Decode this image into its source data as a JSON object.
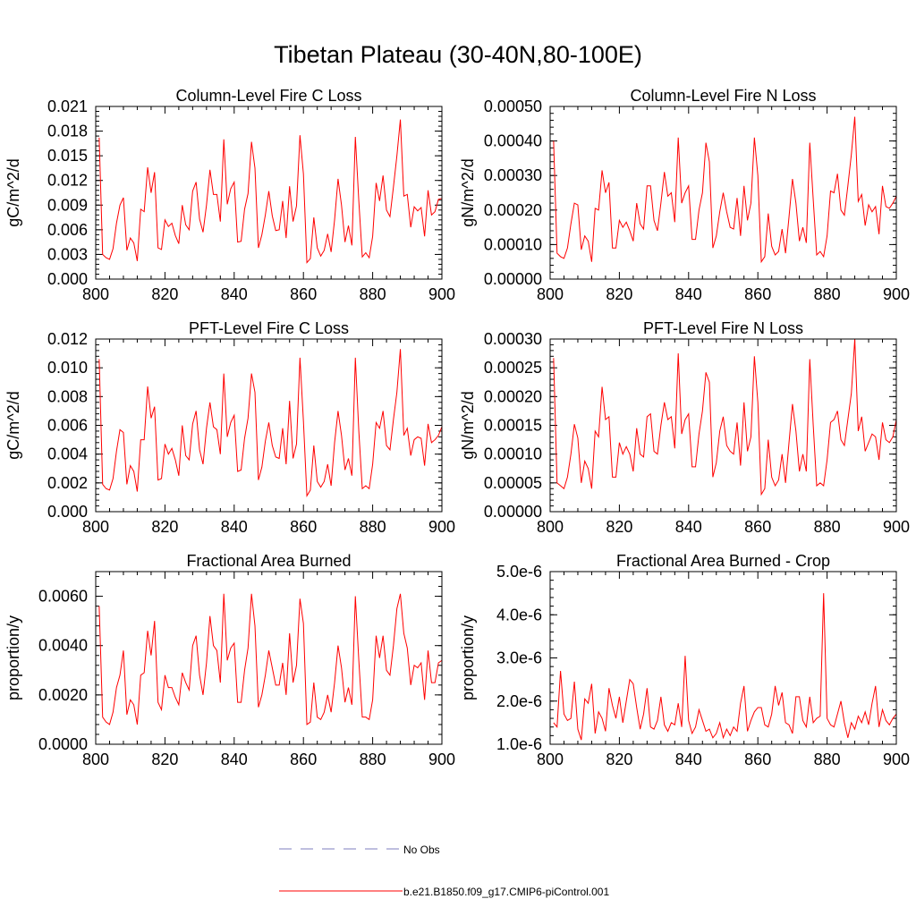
{
  "title": "Tibetan Plateau (30-40N,80-100E)",
  "colors": {
    "series": "#ff0000",
    "obs": "#7f7fbf",
    "axis": "#000000"
  },
  "legend": [
    {
      "label": "No Obs",
      "style": "dashed",
      "color": "#7f7fbf"
    },
    {
      "label": "b.e21.B1850.f09_g17.CMIP6-piControl.001",
      "style": "solid",
      "color": "#ff0000"
    }
  ],
  "chart_data": [
    {
      "type": "line",
      "title": "Column-Level Fire C Loss",
      "xlabel": "",
      "ylabel": "gC/m^2/d",
      "xlim": [
        800,
        900
      ],
      "ylim": [
        0,
        0.021
      ],
      "xticks": [
        800,
        820,
        840,
        860,
        880,
        900
      ],
      "yticks": [
        0.0,
        0.003,
        0.006,
        0.009,
        0.012,
        0.015,
        0.018,
        0.021
      ],
      "ytick_labels": [
        "0.000",
        "0.003",
        "0.006",
        "0.009",
        "0.012",
        "0.015",
        "0.018",
        "0.021"
      ],
      "x_start": 801,
      "series": [
        {
          "name": "b.e21.B1850.f09_g17.CMIP6-piControl.001",
          "values": [
            0.0172,
            0.003,
            0.0026,
            0.0024,
            0.0037,
            0.0068,
            0.009,
            0.0099,
            0.0035,
            0.005,
            0.0044,
            0.0022,
            0.0085,
            0.0082,
            0.0136,
            0.0105,
            0.013,
            0.0038,
            0.0036,
            0.0072,
            0.0064,
            0.0068,
            0.0053,
            0.0043,
            0.009,
            0.0066,
            0.006,
            0.0107,
            0.0118,
            0.0073,
            0.0057,
            0.009,
            0.0133,
            0.0103,
            0.0103,
            0.007,
            0.017,
            0.0091,
            0.011,
            0.0118,
            0.0045,
            0.0046,
            0.0085,
            0.0104,
            0.0167,
            0.0135,
            0.0038,
            0.0054,
            0.0078,
            0.0107,
            0.0077,
            0.0059,
            0.006,
            0.0095,
            0.005,
            0.0113,
            0.007,
            0.0089,
            0.0175,
            0.0128,
            0.002,
            0.0025,
            0.0075,
            0.0038,
            0.0028,
            0.0035,
            0.0055,
            0.0033,
            0.0072,
            0.0122,
            0.009,
            0.0045,
            0.0065,
            0.0041,
            0.0173,
            0.0095,
            0.0027,
            0.0032,
            0.0026,
            0.0052,
            0.0117,
            0.0095,
            0.0126,
            0.0084,
            0.0076,
            0.0112,
            0.015,
            0.0194,
            0.0101,
            0.0103,
            0.0063,
            0.0088,
            0.0083,
            0.0087,
            0.0052,
            0.0108,
            0.0078,
            0.0082,
            0.0097,
            0.0098
          ]
        }
      ]
    },
    {
      "type": "line",
      "title": "Column-Level Fire N Loss",
      "xlabel": "",
      "ylabel": "gN/m^2/d",
      "xlim": [
        800,
        900
      ],
      "ylim": [
        0,
        0.0005
      ],
      "xticks": [
        800,
        820,
        840,
        860,
        880,
        900
      ],
      "yticks": [
        0,
        0.0001,
        0.0002,
        0.0003,
        0.0004,
        0.0005
      ],
      "ytick_labels": [
        "0.00000",
        "0.00010",
        "0.00020",
        "0.00030",
        "0.00040",
        "0.00050"
      ],
      "x_start": 801,
      "series": [
        {
          "name": "b.e21.B1850.f09_g17.CMIP6-piControl.001",
          "values": [
            0.0004,
            7.5e-05,
            6.5e-05,
            6e-05,
            9e-05,
            0.00016,
            0.00022,
            0.000215,
            8.5e-05,
            0.000125,
            0.00011,
            5e-05,
            0.000205,
            0.0002,
            0.000315,
            0.00025,
            0.00028,
            9e-05,
            9e-05,
            0.00017,
            0.00015,
            0.000165,
            0.00014,
            0.00011,
            0.00022,
            0.00016,
            0.000145,
            0.00027,
            0.00027,
            0.00017,
            0.00014,
            0.00022,
            0.00031,
            0.00024,
            0.00025,
            0.000165,
            0.00041,
            0.00022,
            0.00025,
            0.00027,
            0.000115,
            0.000115,
            0.0002,
            0.00025,
            0.000395,
            0.00034,
            9e-05,
            0.000125,
            0.000195,
            0.00025,
            0.000195,
            0.00015,
            0.000145,
            0.000235,
            0.000125,
            0.00027,
            0.00017,
            0.00022,
            0.00041,
            0.0003,
            5e-05,
            6.5e-05,
            0.00019,
            9.5e-05,
            7e-05,
            8e-05,
            0.000145,
            7.5e-05,
            0.00018,
            0.00029,
            0.00022,
            0.00011,
            0.00015,
            0.000105,
            0.000395,
            0.00023,
            7e-05,
            8e-05,
            6.5e-05,
            0.000125,
            0.000255,
            0.00025,
            0.000305,
            0.0002,
            0.000185,
            0.00027,
            0.00036,
            0.00047,
            0.000225,
            0.000245,
            0.000155,
            0.000215,
            0.000195,
            0.00021,
            0.00013,
            0.00027,
            0.00021,
            0.000205,
            0.00022,
            0.00024
          ]
        }
      ]
    },
    {
      "type": "line",
      "title": "PFT-Level Fire C Loss",
      "xlabel": "",
      "ylabel": "gC/m^2/d",
      "xlim": [
        800,
        900
      ],
      "ylim": [
        0,
        0.012
      ],
      "xticks": [
        800,
        820,
        840,
        860,
        880,
        900
      ],
      "yticks": [
        0.0,
        0.002,
        0.004,
        0.006,
        0.008,
        0.01,
        0.012
      ],
      "ytick_labels": [
        "0.000",
        "0.002",
        "0.004",
        "0.006",
        "0.008",
        "0.010",
        "0.012"
      ],
      "x_start": 801,
      "series": [
        {
          "name": "b.e21.B1850.f09_g17.CMIP6-piControl.001",
          "values": [
            0.0106,
            0.0019,
            0.0016,
            0.0015,
            0.0023,
            0.0042,
            0.0057,
            0.0055,
            0.0019,
            0.0032,
            0.0028,
            0.0014,
            0.005,
            0.005,
            0.0087,
            0.0065,
            0.0073,
            0.0022,
            0.0023,
            0.0047,
            0.004,
            0.0044,
            0.0036,
            0.0025,
            0.006,
            0.0039,
            0.0036,
            0.0061,
            0.007,
            0.0043,
            0.0033,
            0.0058,
            0.0076,
            0.0059,
            0.0057,
            0.004,
            0.0096,
            0.0052,
            0.0062,
            0.0067,
            0.0028,
            0.0029,
            0.0051,
            0.0065,
            0.0096,
            0.0083,
            0.0022,
            0.0031,
            0.0049,
            0.0062,
            0.0046,
            0.0038,
            0.0037,
            0.0058,
            0.0033,
            0.0077,
            0.0037,
            0.0047,
            0.0107,
            0.0063,
            0.0011,
            0.0015,
            0.0046,
            0.0021,
            0.0017,
            0.0021,
            0.0033,
            0.0018,
            0.0048,
            0.007,
            0.0053,
            0.0029,
            0.0037,
            0.0025,
            0.0107,
            0.0056,
            0.0016,
            0.0018,
            0.0016,
            0.0033,
            0.0062,
            0.0058,
            0.007,
            0.0046,
            0.0043,
            0.0064,
            0.0083,
            0.0113,
            0.0053,
            0.0058,
            0.0039,
            0.005,
            0.0052,
            0.0051,
            0.0032,
            0.0061,
            0.0048,
            0.005,
            0.0053,
            0.0059
          ]
        }
      ]
    },
    {
      "type": "line",
      "title": "PFT-Level Fire N Loss",
      "xlabel": "",
      "ylabel": "gN/m^2/d",
      "xlim": [
        800,
        900
      ],
      "ylim": [
        0,
        0.0003
      ],
      "xticks": [
        800,
        820,
        840,
        860,
        880,
        900
      ],
      "yticks": [
        0,
        5e-05,
        0.0001,
        0.00015,
        0.0002,
        0.00025,
        0.0003
      ],
      "ytick_labels": [
        "0.00000",
        "0.00005",
        "0.00010",
        "0.00015",
        "0.00020",
        "0.00025",
        "0.00030"
      ],
      "x_start": 801,
      "series": [
        {
          "name": "b.e21.B1850.f09_g17.CMIP6-piControl.001",
          "values": [
            0.000267,
            5e-05,
            4.5e-05,
            4e-05,
            6e-05,
            0.0001,
            0.000152,
            0.000128,
            5e-05,
            8.8e-05,
            7.5e-05,
            4e-05,
            0.00014,
            0.00013,
            0.000217,
            0.00016,
            0.000165,
            6e-05,
            6e-05,
            0.00012,
            0.0001,
            0.000113,
            0.0001,
            7e-05,
            0.000145,
            0.0001,
            9.5e-05,
            0.000165,
            0.00017,
            0.000105,
            0.0001,
            0.00015,
            0.00019,
            0.00016,
            0.000165,
            0.00011,
            0.000275,
            0.000135,
            0.00016,
            0.00017,
            7.8e-05,
            7.8e-05,
            0.000135,
            0.000175,
            0.000242,
            0.000225,
            6e-05,
            8.5e-05,
            0.00014,
            0.000165,
            0.000115,
            0.000105,
            0.0001,
            0.000155,
            8e-05,
            0.00019,
            0.000105,
            0.00013,
            0.00027,
            0.00019,
            3e-05,
            4e-05,
            0.000125,
            6e-05,
            4.5e-05,
            5.5e-05,
            0.0001,
            5e-05,
            0.00012,
            0.000187,
            0.00014,
            7e-05,
            0.0001,
            7e-05,
            0.000265,
            0.00015,
            4.5e-05,
            5e-05,
            4.5e-05,
            9e-05,
            0.000155,
            0.00016,
            0.000175,
            0.000125,
            0.000115,
            0.00016,
            0.000205,
            0.0003,
            0.00014,
            0.000165,
            0.000105,
            0.00012,
            0.000135,
            0.00013,
            9e-05,
            0.000155,
            0.000125,
            0.00012,
            0.00013,
            0.00016
          ]
        }
      ]
    },
    {
      "type": "line",
      "title": "Fractional Area Burned",
      "xlabel": "",
      "ylabel": "proportion/y",
      "xlim": [
        800,
        900
      ],
      "ylim": [
        0,
        0.007
      ],
      "xticks": [
        800,
        820,
        840,
        860,
        880,
        900
      ],
      "yticks": [
        0.0,
        0.002,
        0.004,
        0.006
      ],
      "ytick_labels": [
        "0.0000",
        "0.0020",
        "0.0040",
        "0.0060"
      ],
      "x_start": 801,
      "series": [
        {
          "name": "b.e21.B1850.f09_g17.CMIP6-piControl.001",
          "values": [
            0.0056,
            0.0011,
            0.0009,
            0.0008,
            0.0013,
            0.0023,
            0.0028,
            0.0038,
            0.0012,
            0.0018,
            0.0016,
            0.0008,
            0.0028,
            0.0029,
            0.0046,
            0.0036,
            0.005,
            0.0017,
            0.0014,
            0.0028,
            0.0023,
            0.0023,
            0.0019,
            0.0016,
            0.0029,
            0.0025,
            0.0022,
            0.004,
            0.0044,
            0.0028,
            0.002,
            0.0033,
            0.0052,
            0.004,
            0.0038,
            0.0025,
            0.0061,
            0.0034,
            0.0039,
            0.0041,
            0.0017,
            0.0017,
            0.003,
            0.0039,
            0.0061,
            0.0048,
            0.0015,
            0.002,
            0.0028,
            0.0038,
            0.0031,
            0.0024,
            0.0024,
            0.0033,
            0.002,
            0.0045,
            0.0025,
            0.0032,
            0.0059,
            0.0049,
            0.0008,
            0.0009,
            0.0025,
            0.0011,
            0.001,
            0.0013,
            0.002,
            0.0013,
            0.0025,
            0.004,
            0.0031,
            0.0017,
            0.0023,
            0.0016,
            0.006,
            0.0034,
            0.0011,
            0.0011,
            0.001,
            0.0018,
            0.0044,
            0.0035,
            0.0044,
            0.003,
            0.0028,
            0.004,
            0.0055,
            0.0061,
            0.0045,
            0.0039,
            0.0024,
            0.0032,
            0.0031,
            0.0033,
            0.0018,
            0.0038,
            0.0025,
            0.0025,
            0.0033,
            0.0034
          ]
        }
      ]
    },
    {
      "type": "line",
      "title": "Fractional Area Burned - Crop",
      "xlabel": "",
      "ylabel": "proportion/y",
      "xlim": [
        800,
        900
      ],
      "ylim": [
        1e-06,
        5e-06
      ],
      "xticks": [
        800,
        820,
        840,
        860,
        880,
        900
      ],
      "yticks": [
        1e-06,
        2e-06,
        3e-06,
        4e-06,
        5e-06
      ],
      "ytick_labels": [
        "1.0e-6",
        "2.0e-6",
        "3.0e-6",
        "4.0e-6",
        "5.0e-6"
      ],
      "x_start": 801,
      "series": [
        {
          "name": "b.e21.B1850.f09_g17.CMIP6-piControl.001",
          "values": [
            1.5e-06,
            1.4e-06,
            2.7e-06,
            1.7e-06,
            1.55e-06,
            1.6e-06,
            2.45e-06,
            1.35e-06,
            1.1e-06,
            2.05e-06,
            1.95e-06,
            2.4e-06,
            1.25e-06,
            1.75e-06,
            1.6e-06,
            1.3e-06,
            2.3e-06,
            1.9e-06,
            1.6e-06,
            2.1e-06,
            1.5e-06,
            2e-06,
            2.5e-06,
            2.4e-06,
            1.85e-06,
            1.35e-06,
            1.7e-06,
            2.3e-06,
            1.4e-06,
            1.35e-06,
            1.55e-06,
            2.1e-06,
            1.45e-06,
            1.3e-06,
            1.5e-06,
            1.45e-06,
            1.95e-06,
            1.4e-06,
            3.05e-06,
            1.55e-06,
            1.25e-06,
            1.4e-06,
            1.8e-06,
            1.55e-06,
            1.3e-06,
            1.35e-06,
            1.15e-06,
            1.25e-06,
            1.5e-06,
            1.15e-06,
            1.35e-06,
            1.2e-06,
            1.4e-06,
            1.3e-06,
            1.95e-06,
            2.35e-06,
            1.3e-06,
            1.55e-06,
            1.75e-06,
            1.85e-06,
            1.85e-06,
            1.45e-06,
            1.4e-06,
            1.7e-06,
            2.35e-06,
            1.9e-06,
            2.2e-06,
            1.5e-06,
            1.45e-06,
            1.25e-06,
            2.1e-06,
            2.1e-06,
            1.55e-06,
            1.4e-06,
            2.1e-06,
            1.5e-06,
            1.6e-06,
            1.65e-06,
            4.5e-06,
            1.6e-06,
            1.45e-06,
            1.4e-06,
            1.7e-06,
            2e-06,
            1.5e-06,
            1.15e-06,
            1.5e-06,
            1.35e-06,
            1.65e-06,
            1.5e-06,
            1.75e-06,
            1.45e-06,
            1.95e-06,
            2.35e-06,
            1.4e-06,
            1.8e-06,
            1.55e-06,
            1.45e-06,
            1.6e-06,
            1.7e-06
          ]
        }
      ]
    }
  ]
}
